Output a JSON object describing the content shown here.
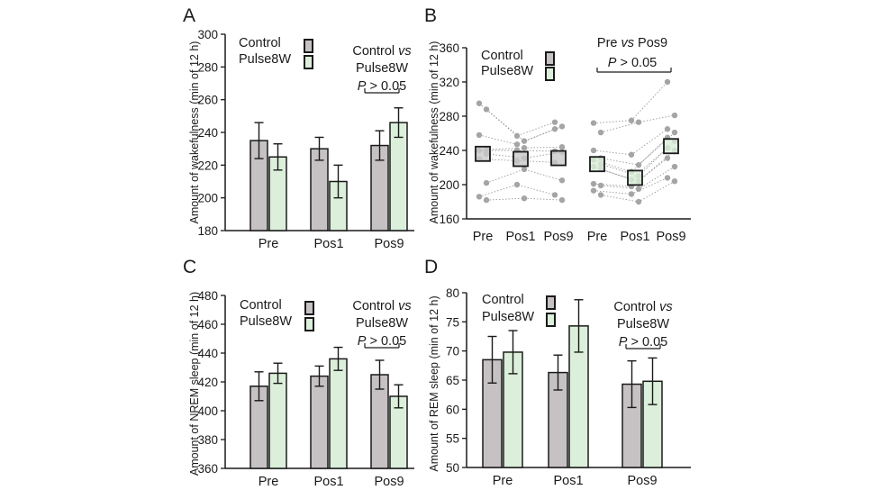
{
  "colors": {
    "control": "#c6c1c3",
    "pulse": "#dbefda",
    "axis": "#1a1a1a",
    "dots": "#a5a5a5",
    "box": "#c9c9c9"
  },
  "chart_data": [
    {
      "panel": "A",
      "type": "bar",
      "ylabel": "Amount of wakefulness (min of 12 h)",
      "ylim": [
        180,
        300
      ],
      "yticks": [
        180,
        200,
        220,
        240,
        260,
        280,
        300
      ],
      "categories": [
        "Pre",
        "Pos1",
        "Pos9"
      ],
      "series": [
        {
          "name": "Control",
          "values": [
            235,
            230,
            232
          ],
          "errors": [
            11,
            7,
            9
          ]
        },
        {
          "name": "Pulse8W",
          "values": [
            225,
            210,
            246
          ],
          "errors": [
            8,
            10,
            9
          ]
        }
      ],
      "annotation": {
        "line1": "Control ",
        "line1_em": "vs",
        "line2": "Pulse8W",
        "p_letter": "P",
        "p_rest": " > 0.05"
      }
    },
    {
      "panel": "B",
      "type": "scatter",
      "ylabel": "Amount of wakefulness (min of 12 h)",
      "ylim": [
        160,
        360
      ],
      "yticks": [
        160,
        200,
        240,
        280,
        320,
        360
      ],
      "categories": [
        "Pre",
        "Pos1",
        "Pos9",
        "Pre",
        "Pos1",
        "Pos9"
      ],
      "series": [
        {
          "name": "Control",
          "means": [
            236,
            230,
            231
          ],
          "points": [
            [
              295,
              288,
              258,
              241,
              240,
              236,
              230,
              202,
              186,
              182
            ],
            [
              257,
              251,
              247,
              243,
              240,
              231,
              228,
              218,
              200,
              184
            ],
            [
              273,
              268,
              265,
              244,
              239,
              238,
              226,
              205,
              188,
              182
            ]
          ]
        },
        {
          "name": "Pulse8W",
          "means": [
            224,
            208,
            245
          ],
          "points": [
            [
              272,
              261,
              240,
              231,
              229,
              224,
              221,
              218,
              201,
              199,
              193,
              188
            ],
            [
              275,
              273,
              235,
              223,
              215,
              210,
              206,
              204,
              198,
              195,
              189,
              180
            ],
            [
              320,
              281,
              265,
              261,
              255,
              251,
              243,
              240,
              231,
              221,
              208,
              204
            ]
          ]
        }
      ],
      "annotation": {
        "line1": "Pre ",
        "line1_em": "vs",
        "line1_rest": " Pos9",
        "p_letter": "P",
        "p_rest": " > 0.05"
      }
    },
    {
      "panel": "C",
      "type": "bar",
      "ylabel": "Amount of NREM sleep (min of 12 h)",
      "ylim": [
        360,
        480
      ],
      "yticks": [
        360,
        380,
        400,
        420,
        440,
        460,
        480
      ],
      "categories": [
        "Pre",
        "Pos1",
        "Pos9"
      ],
      "series": [
        {
          "name": "Control",
          "values": [
            417,
            424,
            425
          ],
          "errors": [
            10,
            7,
            10
          ]
        },
        {
          "name": "Pulse8W",
          "values": [
            426,
            436,
            410
          ],
          "errors": [
            7,
            8,
            8
          ]
        }
      ],
      "annotation": {
        "line1": "Control ",
        "line1_em": "vs",
        "line2": "Pulse8W",
        "p_letter": "P",
        "p_rest": " > 0.05"
      }
    },
    {
      "panel": "D",
      "type": "bar",
      "ylabel": "Amount of REM sleep (min of 12 h)",
      "ylim": [
        50,
        80
      ],
      "yticks": [
        50,
        55,
        60,
        65,
        70,
        75,
        80
      ],
      "categories": [
        "Pre",
        "Pos1",
        "Pos9"
      ],
      "series": [
        {
          "name": "Control",
          "values": [
            68.5,
            66.3,
            64.3
          ],
          "errors": [
            4.0,
            3.0,
            4.0
          ]
        },
        {
          "name": "Pulse8W",
          "values": [
            69.8,
            74.3,
            64.8
          ],
          "errors": [
            3.7,
            4.5,
            4.0
          ]
        }
      ],
      "annotation": {
        "line1": "Control ",
        "line1_em": "vs",
        "line2": "Pulse8W",
        "p_letter": "P",
        "p_rest": " > 0.05"
      }
    }
  ]
}
